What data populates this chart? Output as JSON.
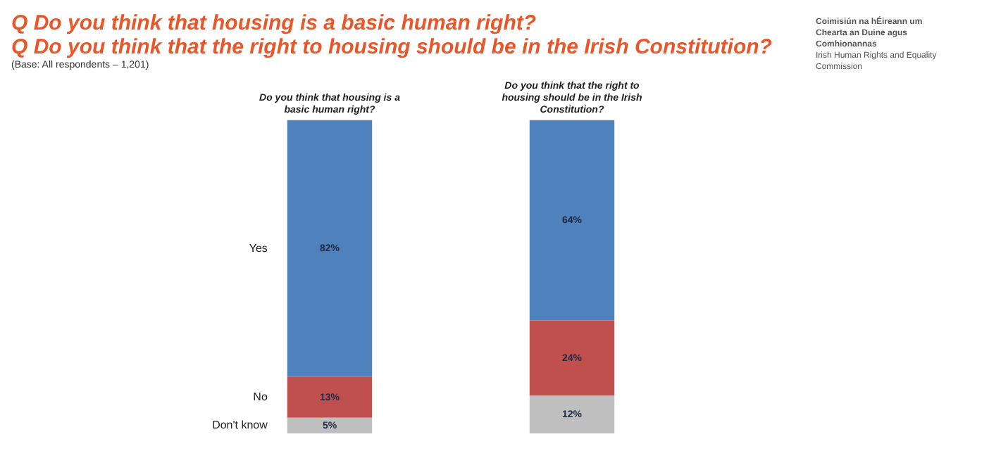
{
  "chart_data": {
    "type": "bar",
    "title": "Q Do you think that housing is a basic human right?\nQ Do you think that the right to housing should be in the Irish Constitution?",
    "subtitle": "(Base: All respondents – 1,201)",
    "annotations": [
      "Coimisiún na hÉireann um Chearta an Duine agus Comhionannas",
      "Irish Human Rights and Equality Commission"
    ],
    "categories": [
      "Do you think that housing is a basic human right?",
      "Do you think that the right to housing should be in the Irish Constitution?"
    ],
    "stacked": true,
    "legend": false,
    "grid": false,
    "series": [
      {
        "name": "Don't know",
        "color": "#bfbfbf",
        "values": [
          5,
          12
        ],
        "value_labels": [
          "5%",
          "12%"
        ]
      },
      {
        "name": "No",
        "color": "#c0504d",
        "values": [
          13,
          24
        ],
        "value_labels": [
          "13%",
          "24%"
        ]
      },
      {
        "name": "Yes",
        "color": "#4f81bd",
        "values": [
          82,
          64
        ],
        "value_labels": [
          "82%",
          "64%"
        ]
      }
    ]
  }
}
